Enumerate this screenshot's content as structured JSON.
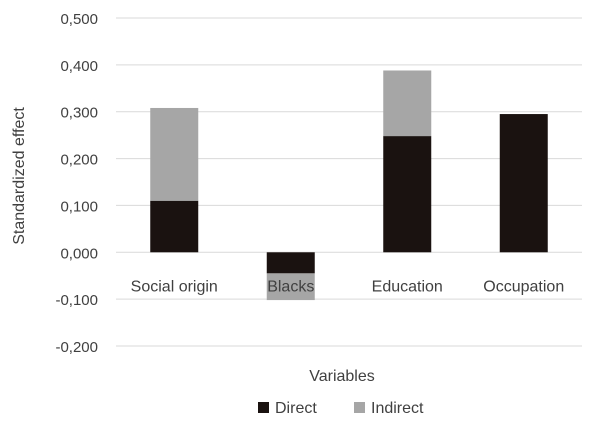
{
  "chart_data": {
    "type": "bar",
    "stacked": true,
    "categories": [
      "Social origin",
      "Blacks",
      "Education",
      "Occupation"
    ],
    "series": [
      {
        "name": "Direct",
        "color": "#1a1210",
        "values": [
          0.11,
          -0.045,
          0.248,
          0.295
        ]
      },
      {
        "name": "Indirect",
        "color": "#a6a6a6",
        "values": [
          0.198,
          -0.057,
          0.14,
          0.0
        ]
      }
    ],
    "xlabel": "Variables",
    "ylabel": "Standardized effect",
    "ylim": [
      -0.2,
      0.5
    ],
    "yticks": [
      "0,500",
      "0,400",
      "0,300",
      "0,200",
      "0,100",
      "0,000",
      "-0,100",
      "-0,200"
    ],
    "ytick_values": [
      0.5,
      0.4,
      0.3,
      0.2,
      0.1,
      0.0,
      -0.1,
      -0.2
    ],
    "grid": true,
    "legend_position": "bottom"
  }
}
